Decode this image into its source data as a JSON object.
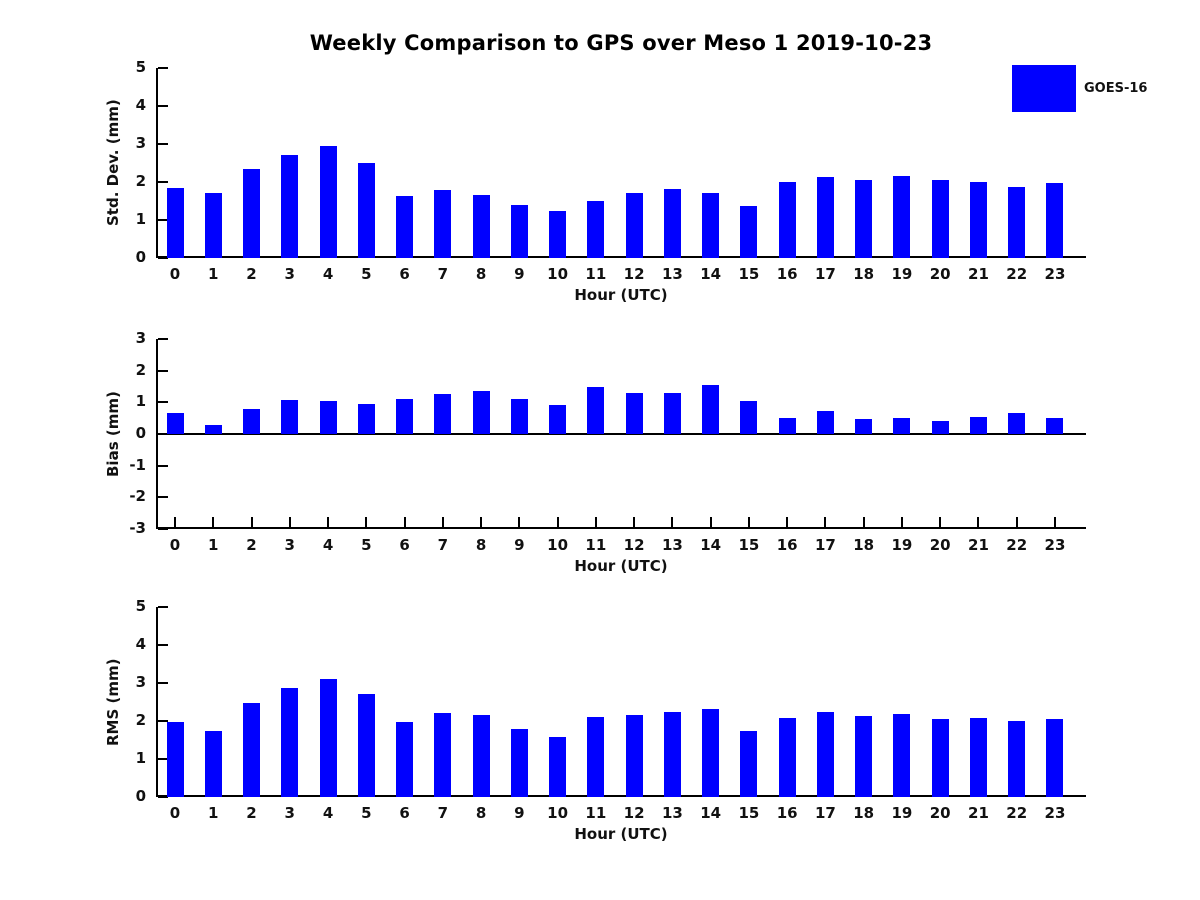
{
  "title": "Weekly Comparison to GPS over Meso 1 2019-10-23",
  "legend": {
    "label": "GOES-16",
    "swatch_color": "#0000ff"
  },
  "colors": {
    "bar": "#0000ff",
    "axis": "#000000",
    "text": "#111111"
  },
  "chart_data": [
    {
      "type": "bar",
      "ylabel": "Std. Dev. (mm)",
      "xlabel": "Hour (UTC)",
      "ylim": [
        0,
        5
      ],
      "yticks": [
        0,
        1,
        2,
        3,
        4,
        5
      ],
      "grid": false,
      "legend_position": "upper-right-outside",
      "series_name": "GOES-16",
      "categories": [
        "0",
        "1",
        "2",
        "3",
        "4",
        "5",
        "6",
        "7",
        "8",
        "9",
        "10",
        "11",
        "12",
        "13",
        "14",
        "15",
        "16",
        "17",
        "18",
        "19",
        "20",
        "21",
        "22",
        "23"
      ],
      "values": [
        1.85,
        1.7,
        2.35,
        2.7,
        2.95,
        2.5,
        1.62,
        1.78,
        1.65,
        1.4,
        1.25,
        1.5,
        1.7,
        1.82,
        1.71,
        1.38,
        2.01,
        2.14,
        2.06,
        2.15,
        2.04,
        2.01,
        1.88,
        1.98
      ]
    },
    {
      "type": "bar",
      "ylabel": "Bias (mm)",
      "xlabel": "Hour (UTC)",
      "ylim": [
        -3,
        3
      ],
      "yticks": [
        -3,
        -2,
        -1,
        0,
        1,
        2,
        3
      ],
      "grid": false,
      "series_name": "GOES-16",
      "categories": [
        "0",
        "1",
        "2",
        "3",
        "4",
        "5",
        "6",
        "7",
        "8",
        "9",
        "10",
        "11",
        "12",
        "13",
        "14",
        "15",
        "16",
        "17",
        "18",
        "19",
        "20",
        "21",
        "22",
        "23"
      ],
      "values": [
        0.65,
        0.27,
        0.78,
        1.07,
        1.04,
        0.96,
        1.1,
        1.26,
        1.35,
        1.1,
        0.93,
        1.48,
        1.3,
        1.3,
        1.55,
        1.03,
        0.49,
        0.74,
        0.47,
        0.49,
        0.4,
        0.54,
        0.65,
        0.5
      ]
    },
    {
      "type": "bar",
      "ylabel": "RMS (mm)",
      "xlabel": "Hour (UTC)",
      "ylim": [
        0,
        5
      ],
      "yticks": [
        0,
        1,
        2,
        3,
        4,
        5
      ],
      "grid": false,
      "series_name": "GOES-16",
      "categories": [
        "0",
        "1",
        "2",
        "3",
        "4",
        "5",
        "6",
        "7",
        "8",
        "9",
        "10",
        "11",
        "12",
        "13",
        "14",
        "15",
        "16",
        "17",
        "18",
        "19",
        "20",
        "21",
        "22",
        "23"
      ],
      "values": [
        1.97,
        1.73,
        2.48,
        2.88,
        3.1,
        2.7,
        1.97,
        2.2,
        2.16,
        1.78,
        1.58,
        2.1,
        2.15,
        2.25,
        2.31,
        1.73,
        2.07,
        2.25,
        2.12,
        2.18,
        2.04,
        2.07,
        2.0,
        2.04
      ]
    }
  ]
}
